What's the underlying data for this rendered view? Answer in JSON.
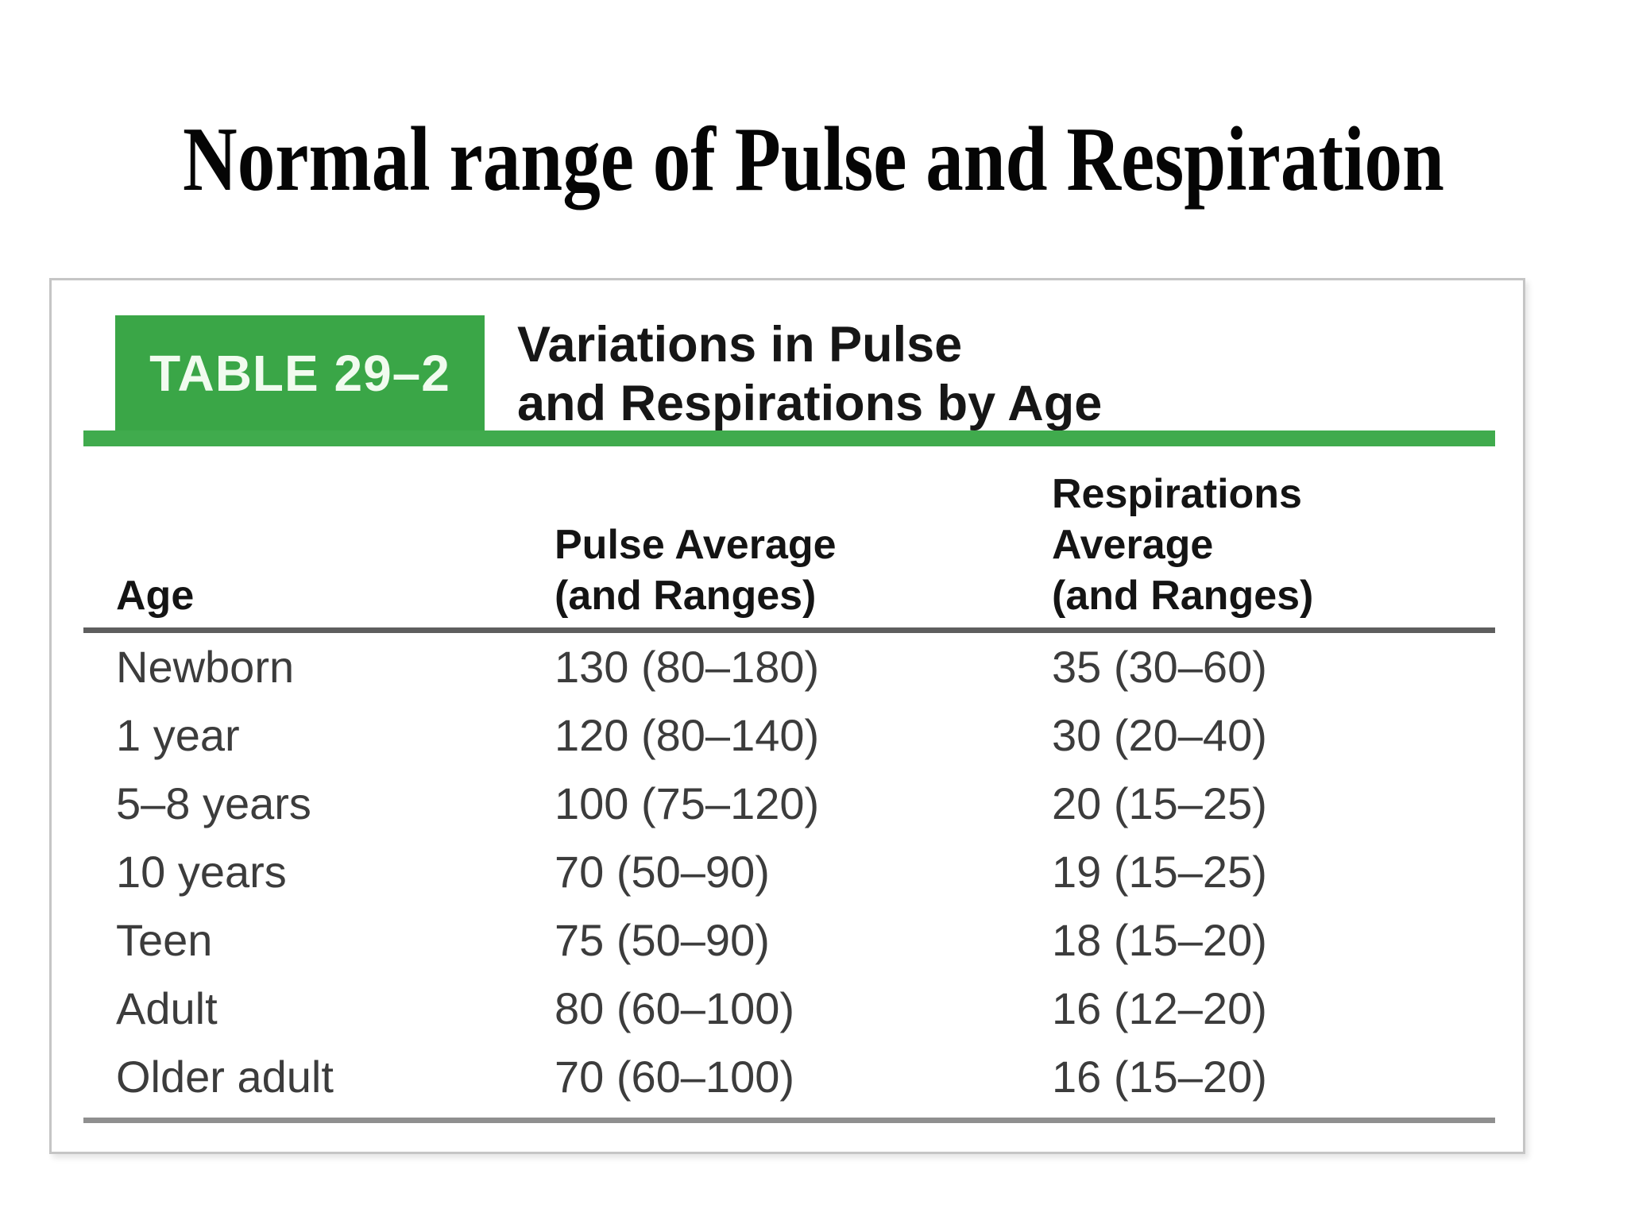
{
  "slide": {
    "title": "Normal range of Pulse and Respiration"
  },
  "table": {
    "tag": "TABLE 29–2",
    "caption_line1": "Variations in Pulse",
    "caption_line2": "and Respirations by Age",
    "headers": [
      {
        "lines": [
          "Age"
        ]
      },
      {
        "lines": [
          "Pulse Average",
          "(and Ranges)"
        ]
      },
      {
        "lines": [
          "Respirations",
          "Average",
          "(and Ranges)"
        ]
      }
    ],
    "rows": [
      {
        "age": "Newborn",
        "pulse": "130 (80–180)",
        "respirations": "35 (30–60)"
      },
      {
        "age": "1 year",
        "pulse": "120 (80–140)",
        "respirations": "30 (20–40)"
      },
      {
        "age": "5–8 years",
        "pulse": "100 (75–120)",
        "respirations": "20 (15–25)"
      },
      {
        "age": "10 years",
        "pulse": "70 (50–90)",
        "respirations": "19 (15–25)"
      },
      {
        "age": "Teen",
        "pulse": "75 (50–90)",
        "respirations": "18 (15–20)"
      },
      {
        "age": "Adult",
        "pulse": "80 (60–100)",
        "respirations": "16 (12–20)"
      },
      {
        "age": "Older adult",
        "pulse": "70 (60–100)",
        "respirations": "16 (15–20)"
      }
    ]
  },
  "colors": {
    "green_tab": "#3aa647",
    "green_bar": "#40ab4d",
    "header_rule": "#5e5e5e",
    "bottom_rule": "#8f8f8f",
    "panel_border": "#c5c5c5",
    "tag_text": "#f1fbef",
    "row_text": "#3c3c3c"
  }
}
